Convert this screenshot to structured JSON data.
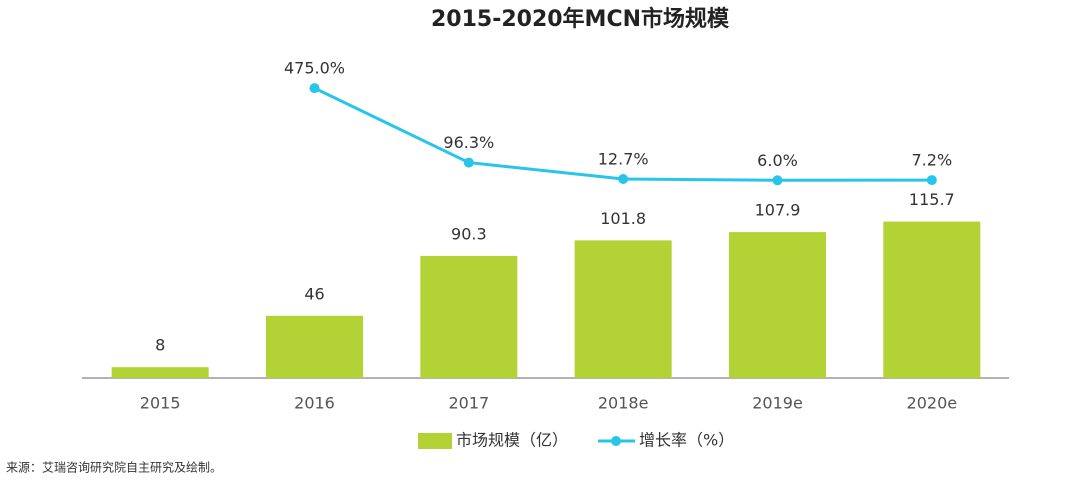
{
  "chart_data": {
    "type": "combo",
    "title": "2015-2020年MCN市场规模",
    "categories": [
      "2015",
      "2016",
      "2017",
      "2018e",
      "2019e",
      "2020e"
    ],
    "series": [
      {
        "name": "市场规模（亿）",
        "type": "bar",
        "color": "#b2d235",
        "values": [
          8,
          46,
          90.3,
          101.8,
          107.9,
          115.7
        ]
      },
      {
        "name": "增长率（%）",
        "type": "line",
        "axis": "y2",
        "color": "#29c4ea",
        "values": [
          null,
          475.0,
          96.3,
          12.7,
          6.0,
          7.2
        ],
        "value_labels": [
          null,
          "475.0%",
          "96.3%",
          "12.7%",
          "6.0%",
          "7.2%"
        ]
      }
    ],
    "ylim": [
      0,
      250
    ],
    "y2lim": [
      -1000,
      720
    ],
    "legend": "bottom",
    "source": "来源：艾瑞咨询研究院自主研究及绘制。"
  }
}
